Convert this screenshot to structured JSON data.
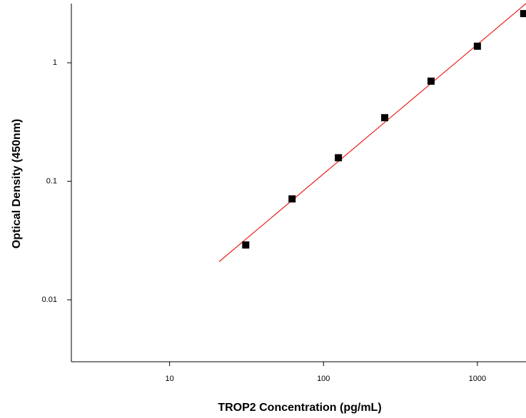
{
  "chart_data": {
    "type": "scatter",
    "xlabel": "TROP2 Concentration (pg/mL)",
    "ylabel": "Optical Density (450nm)",
    "xscale": "log",
    "yscale": "log",
    "xlim": [
      2.3,
      2070
    ],
    "ylim": [
      0.003,
      3.16
    ],
    "xticks": [
      10,
      100,
      1000
    ],
    "yticks": [
      0.01,
      0.1,
      1
    ],
    "series": [
      {
        "color": "#000000",
        "x": [
          31.25,
          62.5,
          125,
          250,
          500,
          1000,
          2000
        ],
        "values": [
          0.029,
          0.071,
          0.158,
          0.344,
          0.7,
          1.38,
          2.6
        ]
      }
    ],
    "fit": {
      "color": "#e8201a",
      "x": [
        21,
        2070
      ],
      "values": [
        0.021,
        3.16
      ]
    }
  }
}
